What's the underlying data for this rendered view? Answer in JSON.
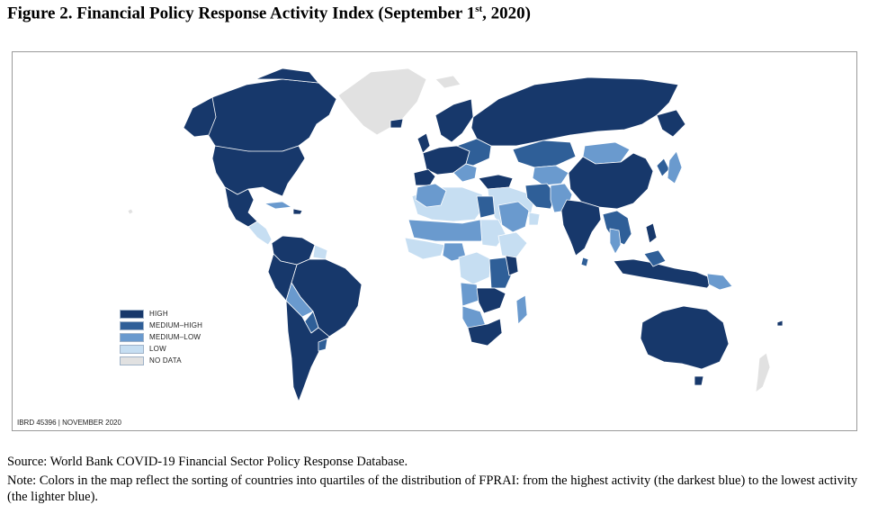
{
  "figure": {
    "title_prefix": "Figure 2. Financial Policy Response Activity Index (September 1",
    "title_sup": "st",
    "title_suffix": ", 2020)"
  },
  "map": {
    "code": "IBRD 45396 | NOVEMBER 2020",
    "legend": [
      {
        "label": "HIGH",
        "color": "#17386b"
      },
      {
        "label": "MEDIUM–HIGH",
        "color": "#2f5f98"
      },
      {
        "label": "MEDIUM–LOW",
        "color": "#6a9ace"
      },
      {
        "label": "LOW",
        "color": "#c6def2"
      },
      {
        "label": "NO DATA",
        "color": "#e1e1e1"
      }
    ]
  },
  "source": "Source: World Bank COVID-19 Financial Sector Policy Response Database.",
  "note": "Note: Colors in the map reflect the sorting of countries into quartiles of the distribution of FPRAI: from the highest activity (the darkest blue) to the lowest activity (the lighter blue)."
}
